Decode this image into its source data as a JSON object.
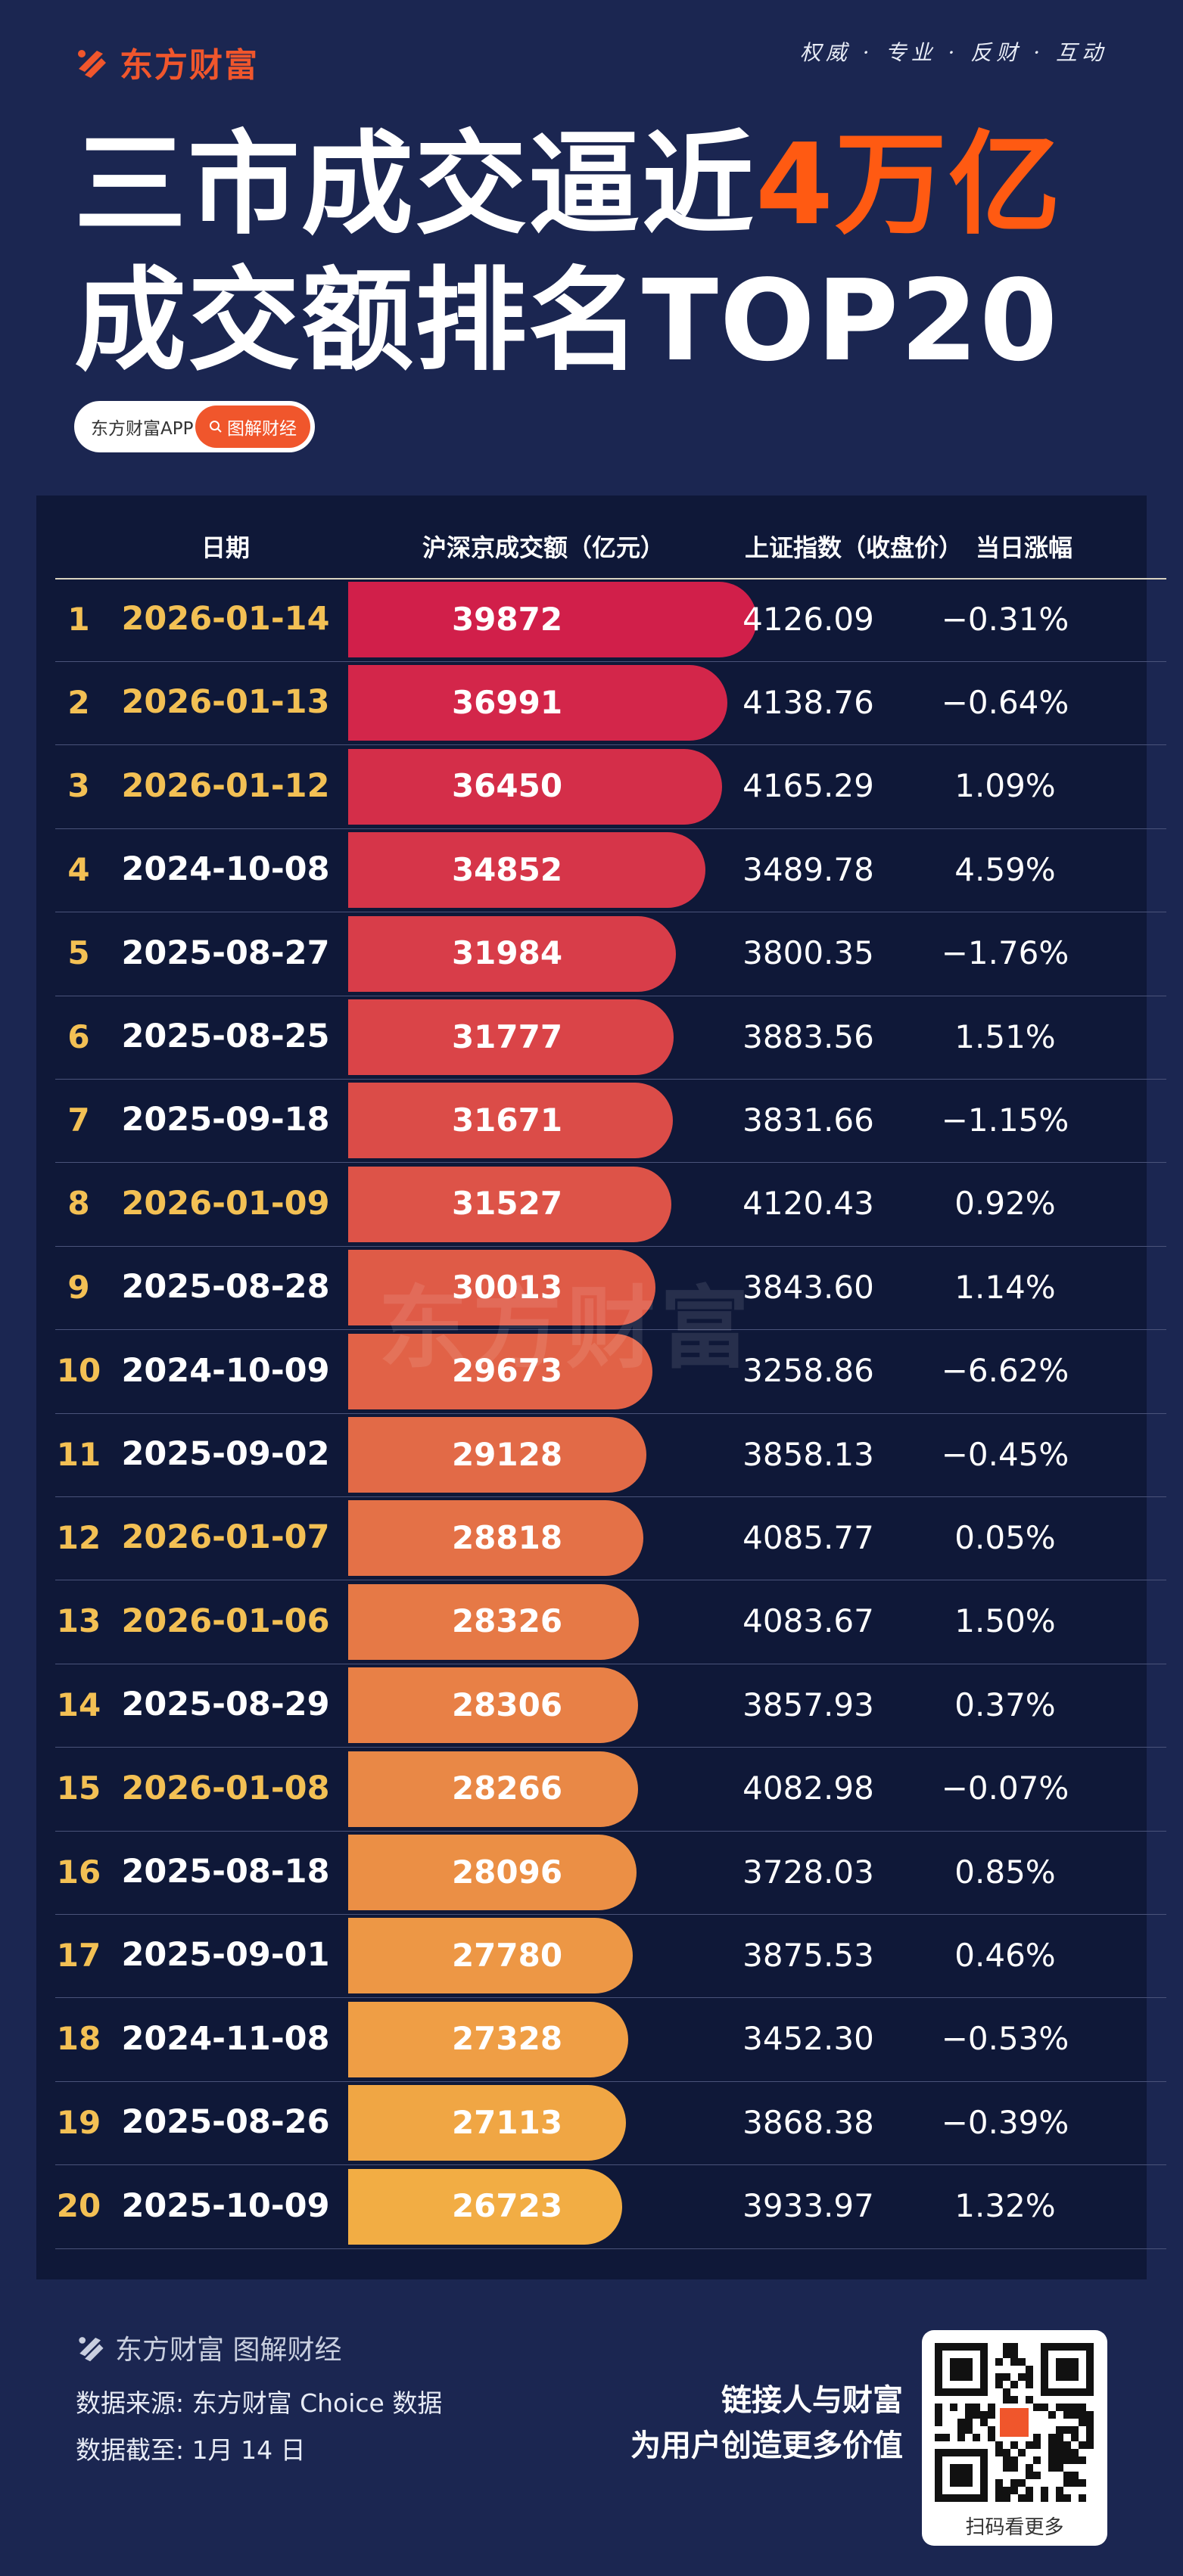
{
  "header": {
    "brand_name": "东方财富",
    "slogan": "权威 · 专业 · 反财 · 互动",
    "title_line1_prefix": "三市成交逼近",
    "title_line1_accent": "4万亿",
    "title_line2": "成交额排名TOP20",
    "app_label": "东方财富APP",
    "tag_label": "图解财经",
    "tag_icon": "search-icon",
    "accent_color": "#ff5a12",
    "brand_color": "#f0562c"
  },
  "table": {
    "headers": {
      "date": "日期",
      "turnover": "沪深京成交额（亿元）",
      "close": "上证指数（收盘价）",
      "change": "当日涨幅"
    },
    "bar_color_top": "#d11f4a",
    "bar_color_bottom": "#f2ad44",
    "highlight_color": "#f3c054"
  },
  "chart_data": {
    "type": "bar",
    "title": "成交额排名TOP20",
    "ylabel": "沪深京成交额（亿元）",
    "ylim": [
      0,
      39872
    ],
    "categories": [
      "2026-01-14",
      "2026-01-13",
      "2026-01-12",
      "2024-10-08",
      "2025-08-27",
      "2025-08-25",
      "2025-09-18",
      "2026-01-09",
      "2025-08-28",
      "2024-10-09",
      "2025-09-02",
      "2026-01-07",
      "2026-01-06",
      "2025-08-29",
      "2026-01-08",
      "2025-08-18",
      "2025-09-01",
      "2024-11-08",
      "2025-08-26",
      "2025-10-09"
    ],
    "rows": [
      {
        "rank": "1",
        "date": "2026-01-14",
        "value": 39872,
        "close": "4126.09",
        "change": "−0.31%",
        "recent": true
      },
      {
        "rank": "2",
        "date": "2026-01-13",
        "value": 36991,
        "close": "4138.76",
        "change": "−0.64%",
        "recent": true
      },
      {
        "rank": "3",
        "date": "2026-01-12",
        "value": 36450,
        "close": "4165.29",
        "change": "1.09%",
        "recent": true
      },
      {
        "rank": "4",
        "date": "2024-10-08",
        "value": 34852,
        "close": "3489.78",
        "change": "4.59%",
        "recent": false
      },
      {
        "rank": "5",
        "date": "2025-08-27",
        "value": 31984,
        "close": "3800.35",
        "change": "−1.76%",
        "recent": false
      },
      {
        "rank": "6",
        "date": "2025-08-25",
        "value": 31777,
        "close": "3883.56",
        "change": "1.51%",
        "recent": false
      },
      {
        "rank": "7",
        "date": "2025-09-18",
        "value": 31671,
        "close": "3831.66",
        "change": "−1.15%",
        "recent": false
      },
      {
        "rank": "8",
        "date": "2026-01-09",
        "value": 31527,
        "close": "4120.43",
        "change": "0.92%",
        "recent": true
      },
      {
        "rank": "9",
        "date": "2025-08-28",
        "value": 30013,
        "close": "3843.60",
        "change": "1.14%",
        "recent": false
      },
      {
        "rank": "10",
        "date": "2024-10-09",
        "value": 29673,
        "close": "3258.86",
        "change": "−6.62%",
        "recent": false
      },
      {
        "rank": "11",
        "date": "2025-09-02",
        "value": 29128,
        "close": "3858.13",
        "change": "−0.45%",
        "recent": false
      },
      {
        "rank": "12",
        "date": "2026-01-07",
        "value": 28818,
        "close": "4085.77",
        "change": "0.05%",
        "recent": true
      },
      {
        "rank": "13",
        "date": "2026-01-06",
        "value": 28326,
        "close": "4083.67",
        "change": "1.50%",
        "recent": true
      },
      {
        "rank": "14",
        "date": "2025-08-29",
        "value": 28306,
        "close": "3857.93",
        "change": "0.37%",
        "recent": false
      },
      {
        "rank": "15",
        "date": "2026-01-08",
        "value": 28266,
        "close": "4082.98",
        "change": "−0.07%",
        "recent": true
      },
      {
        "rank": "16",
        "date": "2025-08-18",
        "value": 28096,
        "close": "3728.03",
        "change": "0.85%",
        "recent": false
      },
      {
        "rank": "17",
        "date": "2025-09-01",
        "value": 27780,
        "close": "3875.53",
        "change": "0.46%",
        "recent": false
      },
      {
        "rank": "18",
        "date": "2024-11-08",
        "value": 27328,
        "close": "3452.30",
        "change": "−0.53%",
        "recent": false
      },
      {
        "rank": "19",
        "date": "2025-08-26",
        "value": 27113,
        "close": "3868.38",
        "change": "−0.39%",
        "recent": false
      },
      {
        "rank": "20",
        "date": "2025-10-09",
        "value": 26723,
        "close": "3933.97",
        "change": "1.32%",
        "recent": false
      }
    ]
  },
  "watermark": "东方财富",
  "footer": {
    "brand": "东方财富 图解财经",
    "source": "数据来源: 东方财富 Choice 数据",
    "as_of": "数据截至: 1月 14 日",
    "slogan1": "链接人与财富",
    "slogan2": "为用户创造更多价值",
    "qr_caption": "扫码看更多"
  }
}
